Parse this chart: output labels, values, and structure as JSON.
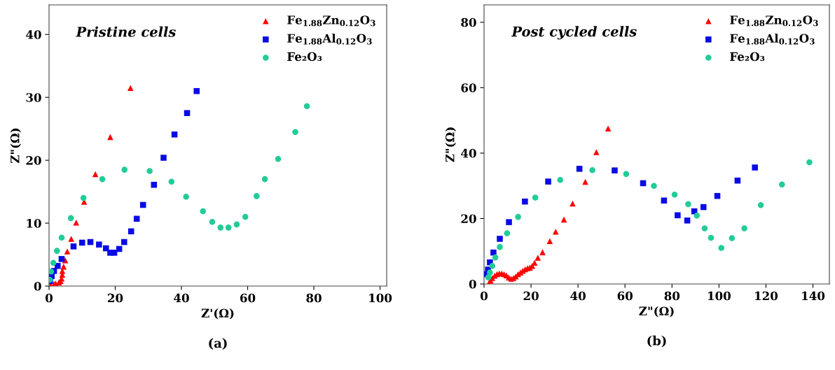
{
  "chart_data": [
    {
      "type": "scatter",
      "xlabel": "Z'(Ω)",
      "ylabel": "Z\"(Ω)",
      "annotations": [
        "Pristine cells",
        "(a)"
      ],
      "xlim": [
        0,
        102
      ],
      "ylim": [
        0,
        44.7
      ],
      "xticks": [
        0,
        20,
        40,
        60,
        80,
        100
      ],
      "yticks": [
        0,
        10,
        20,
        30,
        40
      ],
      "grid": false,
      "legend": "top right",
      "series": [
        {
          "name": "Fe$_{1.88}$Zn$_{0.12}$O$_{3}$",
          "color": "#ff0000",
          "marker": "triangle",
          "x": [
            24.6,
            18.5,
            14.0,
            10.6,
            8.2,
            6.7,
            5.5,
            4.9,
            4.4,
            4.0,
            4.0,
            3.8,
            3.5,
            3.0,
            2.0,
            1.5,
            0.5
          ],
          "values": [
            31.5,
            23.7,
            17.8,
            13.4,
            10.1,
            7.5,
            5.5,
            4.1,
            3.1,
            2.4,
            1.8,
            1.2,
            0.8,
            0.6,
            0.4,
            0.3,
            0.1
          ]
        },
        {
          "name": "Fe$_{1.88}$Al$_{0.12}$O$_{3}$",
          "color": "#0a0ae6",
          "marker": "square",
          "x": [
            44.6,
            41.7,
            37.9,
            34.6,
            31.7,
            28.4,
            26.5,
            24.8,
            22.7,
            21.2,
            19.7,
            18.5,
            17.2,
            15.1,
            12.5,
            10.0,
            7.4,
            3.8,
            2.6,
            1.5,
            0.8,
            0.3
          ],
          "values": [
            31.0,
            27.5,
            24.1,
            20.4,
            16.1,
            12.9,
            10.7,
            8.7,
            7.0,
            5.9,
            5.3,
            5.3,
            6.0,
            6.6,
            7.0,
            6.9,
            6.3,
            4.3,
            3.2,
            2.4,
            1.6,
            0.8
          ]
        },
        {
          "name": "Fe₂O₃",
          "color": "#22cc99",
          "marker": "circle",
          "x": [
            77.9,
            74.4,
            69.2,
            65.2,
            62.7,
            59.3,
            56.7,
            54.2,
            51.8,
            49.3,
            46.5,
            41.4,
            37.0,
            30.4,
            22.8,
            16.1,
            10.4,
            6.6,
            3.8,
            2.4,
            1.3,
            0.6,
            0.2
          ],
          "values": [
            28.6,
            24.5,
            20.2,
            17.0,
            14.3,
            11.0,
            9.8,
            9.3,
            9.3,
            10.2,
            11.9,
            14.2,
            16.6,
            18.3,
            18.5,
            17.0,
            14.0,
            10.8,
            7.7,
            5.6,
            3.7,
            2.3,
            1.0
          ]
        }
      ]
    },
    {
      "type": "scatter",
      "xlabel": "Z\"(Ω)",
      "ylabel": "Z\"(Ω)",
      "annotations": [
        "Post cycled cells",
        "(b)"
      ],
      "xlim": [
        0,
        147
      ],
      "ylim": [
        0,
        85.3
      ],
      "xticks": [
        0,
        20,
        40,
        60,
        80,
        100,
        120,
        140
      ],
      "yticks": [
        0,
        20,
        40,
        60,
        80
      ],
      "grid": false,
      "legend": "top right",
      "series": [
        {
          "name": "Fe$_{1.88}$Zn$_{0.12}$O$_{3}$",
          "color": "#ff0000",
          "marker": "triangle",
          "x": [
            52.8,
            47.8,
            43.1,
            37.7,
            34.0,
            30.5,
            28.0,
            24.9,
            22.9,
            21.5,
            20.5,
            19.5,
            18.5,
            17.5,
            16.5,
            15.5,
            14.5,
            13.5,
            12.5,
            11.5,
            10.5,
            9.5,
            8.5,
            7.5,
            6.5,
            5.5,
            4.5,
            3.5,
            2.8,
            2.2
          ],
          "values": [
            47.5,
            40.3,
            31.2,
            24.6,
            19.7,
            16.0,
            13.1,
            9.7,
            8.0,
            6.5,
            5.5,
            5.0,
            4.8,
            4.5,
            4.0,
            3.5,
            3.0,
            2.3,
            1.8,
            1.6,
            2.0,
            2.6,
            3.0,
            3.2,
            3.2,
            3.0,
            2.5,
            1.8,
            1.0,
            0.4
          ]
        },
        {
          "name": "Fe$_{1.88}$Al$_{0.12}$O$_{3}$",
          "color": "#0a0ae6",
          "marker": "square",
          "x": [
            115.3,
            107.9,
            99.3,
            93.4,
            89.5,
            86.5,
            82.4,
            76.6,
            67.7,
            55.6,
            40.6,
            27.3,
            17.4,
            10.6,
            6.7,
            4.0,
            2.5,
            1.7,
            1.2
          ],
          "values": [
            35.6,
            31.6,
            26.9,
            23.5,
            22.2,
            19.4,
            21.0,
            25.5,
            30.8,
            34.7,
            35.2,
            31.3,
            25.2,
            18.9,
            13.8,
            9.6,
            6.6,
            4.4,
            3.0
          ]
        },
        {
          "name": "Fe₂O₃",
          "color": "#22cc99",
          "marker": "circle",
          "x": [
            138.5,
            126.8,
            117.8,
            110.8,
            105.5,
            101.0,
            96.6,
            93.9,
            90.6,
            86.9,
            81.1,
            72.3,
            60.5,
            46.1,
            32.4,
            21.8,
            14.5,
            9.8,
            6.7,
            4.8,
            3.5,
            2.5,
            1.8
          ],
          "values": [
            37.2,
            30.4,
            24.1,
            17.0,
            14.0,
            11.0,
            14.1,
            17.0,
            20.9,
            24.4,
            27.3,
            30.0,
            33.6,
            34.8,
            31.8,
            26.4,
            20.5,
            15.5,
            11.3,
            8.1,
            5.5,
            3.5,
            2.0
          ]
        }
      ]
    }
  ]
}
